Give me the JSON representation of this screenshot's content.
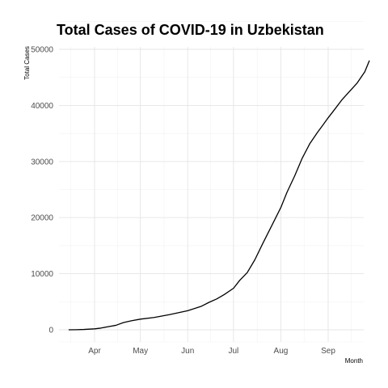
{
  "chart_data": {
    "type": "line",
    "title": "Total Cases of COVID-19 in Uzbekistan",
    "xlabel": "Month",
    "ylabel": "Total Cases",
    "x_ticks": [
      "Apr",
      "May",
      "Jun",
      "Jul",
      "Aug",
      "Sep"
    ],
    "y_ticks": [
      "0",
      "10000",
      "20000",
      "30000",
      "40000",
      "50000"
    ],
    "ylim": [
      0,
      50000
    ],
    "grid": true,
    "legend": "none",
    "line_color": "#000000",
    "x": [
      "2020-03-15",
      "2020-03-20",
      "2020-03-25",
      "2020-04-01",
      "2020-04-05",
      "2020-04-10",
      "2020-04-15",
      "2020-04-20",
      "2020-04-25",
      "2020-05-01",
      "2020-05-10",
      "2020-05-20",
      "2020-06-01",
      "2020-06-10",
      "2020-06-15",
      "2020-06-20",
      "2020-06-25",
      "2020-07-01",
      "2020-07-05",
      "2020-07-10",
      "2020-07-15",
      "2020-07-20",
      "2020-07-25",
      "2020-08-01",
      "2020-08-05",
      "2020-08-10",
      "2020-08-15",
      "2020-08-20",
      "2020-08-25",
      "2020-08-28",
      "2020-09-01",
      "2020-09-05",
      "2020-09-10",
      "2020-09-15",
      "2020-09-20",
      "2020-09-25",
      "2020-09-28"
    ],
    "values": [
      0,
      20,
      60,
      170,
      300,
      560,
      800,
      1300,
      1600,
      1900,
      2200,
      2700,
      3400,
      4200,
      4900,
      5500,
      6300,
      7400,
      8800,
      10200,
      12500,
      15300,
      18000,
      21800,
      24500,
      27400,
      30600,
      33200,
      35200,
      36300,
      37800,
      39200,
      41000,
      42500,
      44000,
      46000,
      48000
    ]
  }
}
